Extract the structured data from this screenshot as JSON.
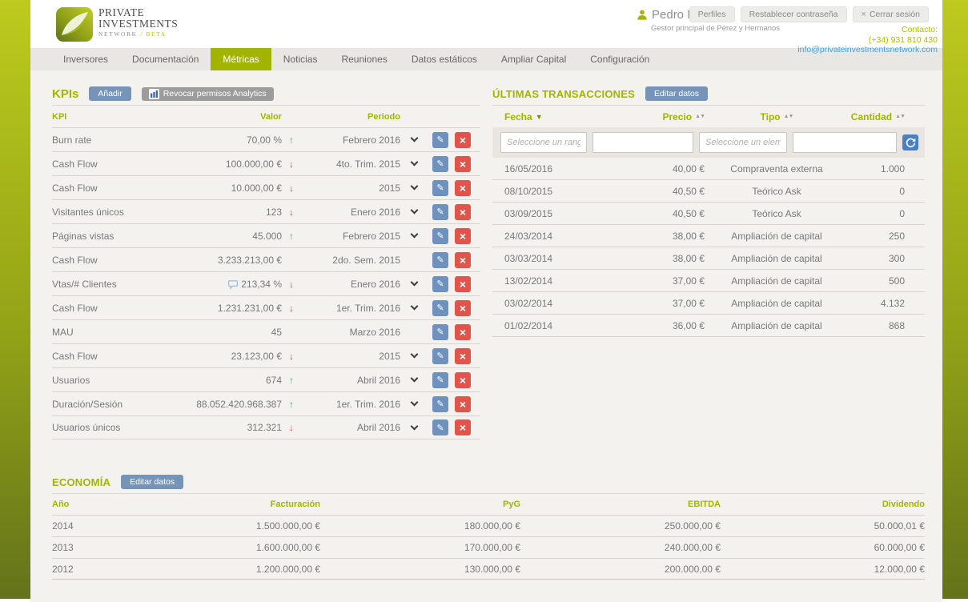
{
  "brand": {
    "line1": "PRIVATE",
    "line2": "INVESTMENTS",
    "subtitle": "NETWORK",
    "beta": "/ BETA"
  },
  "header": {
    "user_name": "Pedro Muñoz",
    "user_role": "Gestor principal de Pérez y Hermanos",
    "buttons": [
      {
        "label": "Perfiles",
        "icon": null
      },
      {
        "label": "Restablecer contraseña",
        "icon": null
      },
      {
        "label": "Cerrar sesión",
        "icon": "x"
      }
    ],
    "contact_label": "Contacto:",
    "contact_phone": "(+34) 931 810 430",
    "contact_email": "info@privateinvestmentsnetwork.com"
  },
  "nav": {
    "tabs": [
      "Inversores",
      "Documentación",
      "Métricas",
      "Noticias",
      "Reuniones",
      "Datos estáticos",
      "Ampliar Capital",
      "Configuración"
    ],
    "active_tab": "Métricas"
  },
  "kpis": {
    "title": "KPIs",
    "add_button": "Añadir",
    "revoke_button": "Revocar permisos Analytics",
    "columns": [
      "KPI",
      "Valor",
      "Periodo"
    ],
    "rows": [
      {
        "kpi": "Burn rate",
        "valor": "70,00 %",
        "trend": "up",
        "periodo": "Febrero 2016",
        "chevron": true,
        "note": false
      },
      {
        "kpi": "Cash Flow",
        "valor": "100.000,00 €",
        "trend": "down",
        "periodo": "4to. Trim. 2015",
        "chevron": true,
        "note": false
      },
      {
        "kpi": "Cash Flow",
        "valor": "10.000,00 €",
        "trend": "down",
        "periodo": "2015",
        "chevron": true,
        "note": false
      },
      {
        "kpi": "Visitantes únicos",
        "valor": "123",
        "trend": "down",
        "periodo": "Enero 2016",
        "chevron": true,
        "note": false
      },
      {
        "kpi": "Páginas vistas",
        "valor": "45.000",
        "trend": "up",
        "periodo": "Febrero 2015",
        "chevron": true,
        "note": false
      },
      {
        "kpi": "Cash Flow",
        "valor": "3.233.213,00 €",
        "trend": null,
        "periodo": "2do. Sem. 2015",
        "chevron": false,
        "note": false
      },
      {
        "kpi": "Vtas/# Clientes",
        "valor": "213,34 %",
        "trend": "down",
        "periodo": "Enero 2016",
        "chevron": true,
        "note": true
      },
      {
        "kpi": "Cash Flow",
        "valor": "1.231.231,00 €",
        "trend": "down",
        "periodo": "1er. Trim. 2016",
        "chevron": true,
        "note": false
      },
      {
        "kpi": "MAU",
        "valor": "45",
        "trend": null,
        "periodo": "Marzo 2016",
        "chevron": false,
        "note": false
      },
      {
        "kpi": "Cash Flow",
        "valor": "23.123,00 €",
        "trend": "down",
        "periodo": "2015",
        "chevron": true,
        "note": false
      },
      {
        "kpi": "Usuarios",
        "valor": "674",
        "trend": "up",
        "periodo": "Abril 2016",
        "chevron": true,
        "note": false
      },
      {
        "kpi": "Duración/Sesión",
        "valor": "88.052.420.968.387",
        "trend": "up",
        "periodo": "1er. Trim. 2016",
        "chevron": true,
        "note": false
      },
      {
        "kpi": "Usuarios únicos",
        "valor": "312.321",
        "trend": "down",
        "periodo": "Abril 2016",
        "chevron": true,
        "note": false
      }
    ]
  },
  "transactions": {
    "title": "ÚLTIMAS TRANSACCIONES",
    "edit_button": "Editar datos",
    "columns": [
      {
        "label": "Fecha",
        "sort": "desc"
      },
      {
        "label": "Precio",
        "sort": "both"
      },
      {
        "label": "Tipo",
        "sort": "both"
      },
      {
        "label": "Cantidad",
        "sort": "both"
      }
    ],
    "filters": [
      {
        "name": "fecha-range-filter",
        "placeholder": "Seleccione un rango",
        "value": ""
      },
      {
        "name": "precio-filter",
        "placeholder": "",
        "value": ""
      },
      {
        "name": "tipo-filter",
        "placeholder": "Seleccione un eleme...",
        "value": ""
      },
      {
        "name": "cantidad-filter",
        "placeholder": "",
        "value": ""
      }
    ],
    "rows": [
      {
        "fecha": "16/05/2016",
        "precio": "40,00 €",
        "tipo": "Compraventa externa",
        "cantidad": "1.000"
      },
      {
        "fecha": "08/10/2015",
        "precio": "40,50 €",
        "tipo": "Teórico Ask",
        "cantidad": "0"
      },
      {
        "fecha": "03/09/2015",
        "precio": "40,50 €",
        "tipo": "Teórico Ask",
        "cantidad": "0"
      },
      {
        "fecha": "24/03/2014",
        "precio": "38,00 €",
        "tipo": "Ampliación de capital",
        "cantidad": "250"
      },
      {
        "fecha": "03/03/2014",
        "precio": "38,00 €",
        "tipo": "Ampliación de capital",
        "cantidad": "300"
      },
      {
        "fecha": "13/02/2014",
        "precio": "37,00 €",
        "tipo": "Ampliación de capital",
        "cantidad": "500"
      },
      {
        "fecha": "03/02/2014",
        "precio": "37,00 €",
        "tipo": "Ampliación de capital",
        "cantidad": "4.132"
      },
      {
        "fecha": "01/02/2014",
        "precio": "36,00 €",
        "tipo": "Ampliación de capital",
        "cantidad": "868"
      }
    ]
  },
  "economia": {
    "title": "ECONOMÍA",
    "edit_button": "Editar datos",
    "columns": [
      "Año",
      "Facturación",
      "PyG",
      "EBITDA",
      "Dividendo"
    ],
    "rows": [
      [
        "2014",
        "1.500.000,00 €",
        "180.000,00 €",
        "250.000,00 €",
        "50.000,01 €"
      ],
      [
        "2013",
        "1.600.000,00 €",
        "170.000,00 €",
        "240.000,00 €",
        "60.000,00 €"
      ],
      [
        "2012",
        "1.200.000,00 €",
        "130.000,00 €",
        "200.000,00 €",
        "12.000,00 €"
      ]
    ]
  },
  "colors": {
    "accent_olive": "#a3b400",
    "sidebar_gradient_top": "#bdca1e",
    "sidebar_gradient_bottom": "#64731a",
    "button_blue": "#7594b8",
    "button_gray": "#9c9c9c",
    "edit_blue": "#6d92bd",
    "delete_red": "#e2544b",
    "refresh_blue": "#4a7fc1",
    "link_blue": "#45a0dc",
    "trend_up_green": "#41ad49",
    "trend_down_red": "#d9453c"
  }
}
